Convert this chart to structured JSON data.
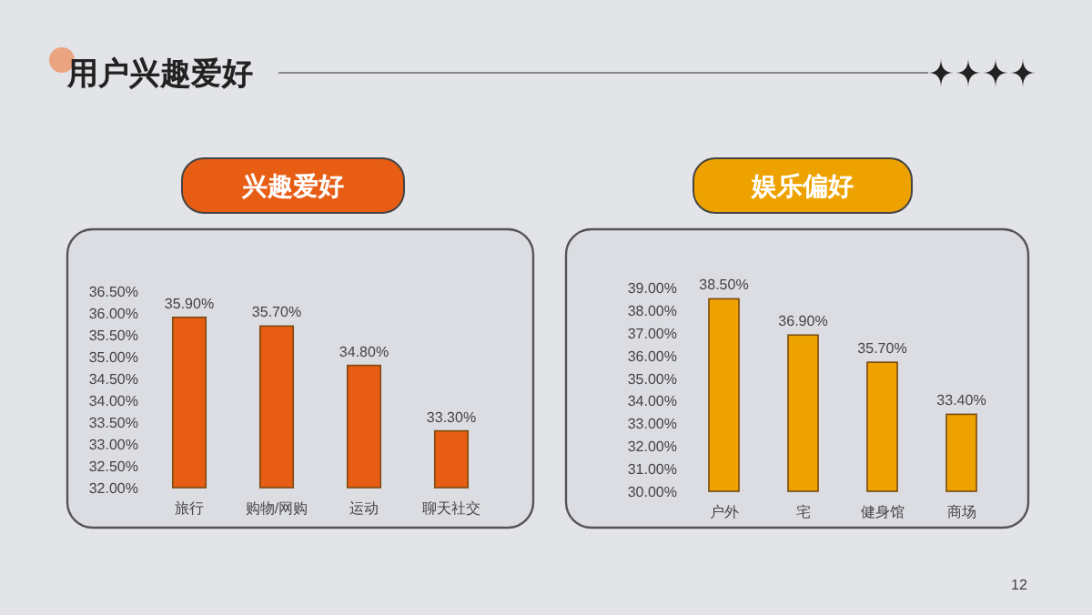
{
  "chart_data": [
    {
      "type": "bar",
      "title": "兴趣爱好",
      "annotations": [
        "用户兴趣爱好",
        "12"
      ],
      "categories": [
        "旅行",
        "购物/网购",
        "运动",
        "聊天社交"
      ],
      "series": [
        {
          "color": "#e85d14",
          "values": [
            35.9,
            35.7,
            34.8,
            33.3
          ],
          "value_labels": [
            "35.90%",
            "35.70%",
            "34.80%",
            "33.30%"
          ]
        }
      ],
      "ylim": [
        32,
        36.5
      ],
      "yticks": [
        {
          "value": 32,
          "label": "32.00%"
        },
        {
          "value": 32.5,
          "label": "32.50%"
        },
        {
          "value": 33,
          "label": "33.00%"
        },
        {
          "value": 33.5,
          "label": "33.50%"
        },
        {
          "value": 34,
          "label": "34.00%"
        },
        {
          "value": 34.5,
          "label": "34.50%"
        },
        {
          "value": 35,
          "label": "35.00%"
        },
        {
          "value": 35.5,
          "label": "35.50%"
        },
        {
          "value": 36,
          "label": "36.00%"
        },
        {
          "value": 36.5,
          "label": "36.50%"
        }
      ]
    },
    {
      "type": "bar",
      "title": "娱乐偏好",
      "categories": [
        "户外",
        "宅",
        "健身馆",
        "商场"
      ],
      "series": [
        {
          "color": "#eea200",
          "values": [
            38.5,
            36.9,
            35.7,
            33.4
          ],
          "value_labels": [
            "38.50%",
            "36.90%",
            "35.70%",
            "33.40%"
          ]
        }
      ],
      "ylim": [
        30,
        39
      ],
      "yticks": [
        {
          "value": 30,
          "label": "30.00%"
        },
        {
          "value": 31,
          "label": "31.00%"
        },
        {
          "value": 32,
          "label": "32.00%"
        },
        {
          "value": 33,
          "label": "33.00%"
        },
        {
          "value": 34,
          "label": "34.00%"
        },
        {
          "value": 35,
          "label": "35.00%"
        },
        {
          "value": 36,
          "label": "36.00%"
        },
        {
          "value": 37,
          "label": "37.00%"
        },
        {
          "value": 38,
          "label": "38.00%"
        },
        {
          "value": 39,
          "label": "39.00%"
        }
      ]
    }
  ]
}
